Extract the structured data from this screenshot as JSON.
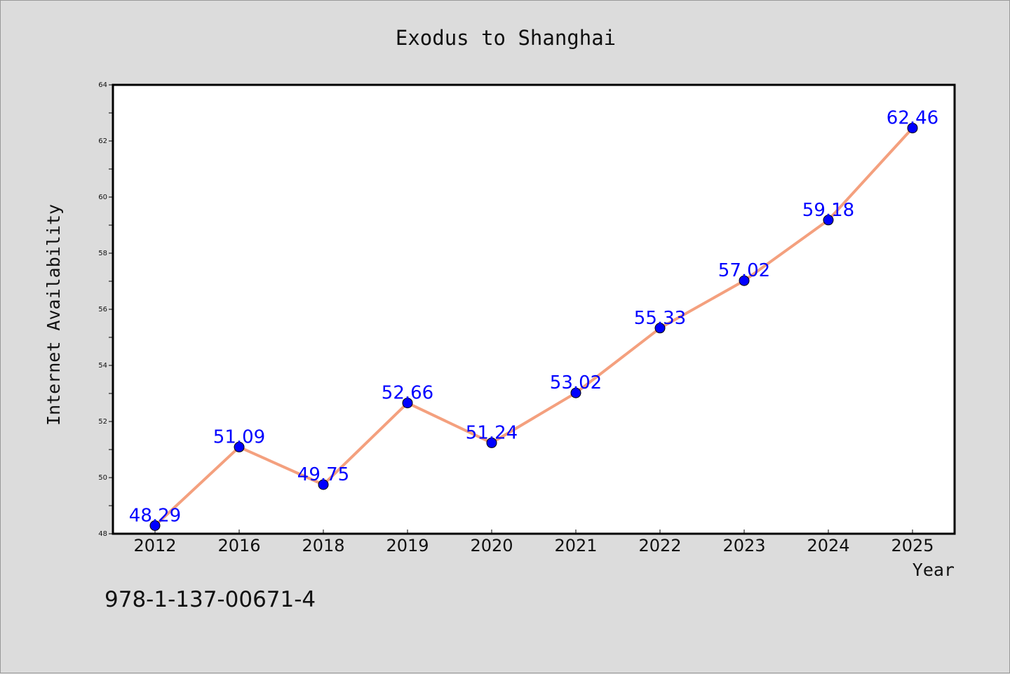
{
  "chart_data": {
    "type": "line",
    "title": "Exodus to Shanghai",
    "xlabel": "Year",
    "ylabel": "Internet Availability",
    "categories": [
      "2012",
      "2016",
      "2018",
      "2019",
      "2020",
      "2021",
      "2022",
      "2023",
      "2024",
      "2025"
    ],
    "series": [
      {
        "values": [
          48.29,
          51.09,
          49.75,
          52.66,
          51.24,
          53.02,
          55.33,
          57.02,
          59.18,
          62.46
        ],
        "data_labels": [
          "48.29",
          "51.09",
          "49.75",
          "52.66",
          "51.24",
          "53.02",
          "55.33",
          "57.02",
          "59.18",
          "62.46"
        ]
      }
    ],
    "ylim": [
      48,
      64
    ],
    "yticks": [
      48,
      50,
      52,
      54,
      56,
      58,
      60,
      62,
      64
    ],
    "grid": false,
    "legend": "none",
    "colors": {
      "line": "#f4a07e",
      "marker": "#0000ff",
      "data_label": "#0000ff",
      "background": "#dcdcdc",
      "plot_background": "#ffffff"
    }
  },
  "footer": {
    "isbn": "978-1-137-00671-4"
  }
}
